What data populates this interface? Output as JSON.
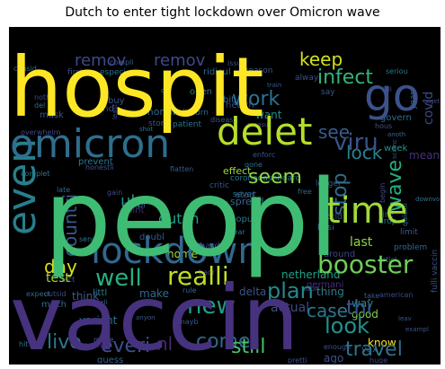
{
  "chart_data": {
    "type": "wordcloud",
    "title": "Dutch to enter tight lockdown over Omicron wave",
    "background": "#000000",
    "colormap": "viridis",
    "words": [
      {
        "text": "peopl",
        "weight": 1.0,
        "color": "#3fbc73"
      },
      {
        "text": "vaccin",
        "weight": 0.92,
        "color": "#46327e"
      },
      {
        "text": "hospit",
        "weight": 0.88,
        "color": "#fde725"
      },
      {
        "text": "lockdown",
        "weight": 0.62,
        "color": "#31688e"
      },
      {
        "text": "omicron",
        "weight": 0.6,
        "color": "#2e6e8e"
      },
      {
        "text": "delet",
        "weight": 0.58,
        "color": "#b5de2b"
      },
      {
        "text": "time",
        "weight": 0.55,
        "color": "#a0da39"
      },
      {
        "text": "go",
        "weight": 0.55,
        "color": "#3b528b"
      },
      {
        "text": "even",
        "weight": 0.5,
        "color": "#277f8e"
      },
      {
        "text": "realli",
        "weight": 0.42,
        "color": "#bddf26"
      },
      {
        "text": "booster",
        "weight": 0.4,
        "color": "#6ece58"
      },
      {
        "text": "look",
        "weight": 0.4,
        "color": "#21918c"
      },
      {
        "text": "new",
        "weight": 0.38,
        "color": "#1f9e89"
      },
      {
        "text": "plan",
        "weight": 0.38,
        "color": "#23898e"
      },
      {
        "text": "viru",
        "weight": 0.36,
        "color": "#3b528b"
      },
      {
        "text": "work",
        "weight": 0.34,
        "color": "#2c738e"
      },
      {
        "text": "infect",
        "weight": 0.34,
        "color": "#31b57b"
      },
      {
        "text": "well",
        "weight": 0.34,
        "color": "#28ae80"
      },
      {
        "text": "day",
        "weight": 0.32,
        "color": "#d8e219"
      },
      {
        "text": "live",
        "weight": 0.32,
        "color": "#2a788e"
      },
      {
        "text": "still",
        "weight": 0.32,
        "color": "#4ac16d"
      },
      {
        "text": "travel",
        "weight": 0.32,
        "color": "#2c728e"
      },
      {
        "text": "remov",
        "weight": 0.3,
        "color": "#3e4989"
      },
      {
        "text": "remov",
        "weight": 0.3,
        "color": "#3e4989"
      },
      {
        "text": "see",
        "weight": 0.3,
        "color": "#365d8d"
      },
      {
        "text": "keep",
        "weight": 0.28,
        "color": "#d2e21b"
      },
      {
        "text": "seem",
        "weight": 0.28,
        "color": "#90d743"
      },
      {
        "text": "wave",
        "weight": 0.28,
        "color": "#26ad81"
      },
      {
        "text": "stop",
        "weight": 0.27,
        "color": "#2f6c8e"
      },
      {
        "text": "lock",
        "weight": 0.26,
        "color": "#26828e"
      },
      {
        "text": "countri",
        "weight": 0.26,
        "color": "#39568c"
      },
      {
        "text": "come",
        "weight": 0.26,
        "color": "#31688e"
      },
      {
        "text": "case",
        "weight": 0.26,
        "color": "#2a788e"
      },
      {
        "text": "thi",
        "weight": 0.26,
        "color": "#38588c"
      },
      {
        "text": "everi",
        "weight": 0.26,
        "color": "#3b528b"
      },
      {
        "text": "dutch",
        "weight": 0.22,
        "color": "#1fa088"
      },
      {
        "text": "uk",
        "weight": 0.22,
        "color": "#21918c"
      },
      {
        "text": "covid",
        "weight": 0.22,
        "color": "#3e4989"
      },
      {
        "text": "test",
        "weight": 0.2,
        "color": "#a0da39"
      },
      {
        "text": "nl",
        "weight": 0.2,
        "color": "#482677"
      },
      {
        "text": "home",
        "weight": 0.16,
        "color": "#a5db36"
      },
      {
        "text": "last",
        "weight": 0.16,
        "color": "#8bd646"
      },
      {
        "text": "thing",
        "weight": 0.15,
        "color": "#287c8e"
      },
      {
        "text": "netherland",
        "weight": 0.15,
        "color": "#1fa187"
      },
      {
        "text": "actual",
        "weight": 0.15,
        "color": "#3d4d8a"
      },
      {
        "text": "delta",
        "weight": 0.15,
        "color": "#3b528b"
      },
      {
        "text": "make",
        "weight": 0.14,
        "color": "#31688e"
      },
      {
        "text": "think",
        "weight": 0.14,
        "color": "#38598c"
      },
      {
        "text": "variant",
        "weight": 0.14,
        "color": "#2c728e"
      },
      {
        "text": "know",
        "weight": 0.14,
        "color": "#fde725"
      },
      {
        "text": "way",
        "weight": 0.14,
        "color": "#24878e"
      },
      {
        "text": "good",
        "weight": 0.14,
        "color": "#7ad151"
      },
      {
        "text": "need",
        "weight": 0.14,
        "color": "#482878"
      },
      {
        "text": "ago",
        "weight": 0.14,
        "color": "#3b528b"
      },
      {
        "text": "want",
        "weight": 0.14,
        "color": "#228d8d"
      },
      {
        "text": "mean",
        "weight": 0.12,
        "color": "#46327e"
      },
      {
        "text": "much",
        "weight": 0.12,
        "color": "#2f6c8e"
      },
      {
        "text": "guess",
        "weight": 0.12,
        "color": "#35608d"
      },
      {
        "text": "month",
        "weight": 0.12,
        "color": "#31688e"
      },
      {
        "text": "effect",
        "weight": 0.12,
        "color": "#9bd93c"
      },
      {
        "text": "spread",
        "weight": 0.12,
        "color": "#31688e"
      },
      {
        "text": "point",
        "weight": 0.12,
        "color": "#472c7a"
      },
      {
        "text": "popul",
        "weight": 0.12,
        "color": "#2a788e"
      },
      {
        "text": "hard",
        "weight": 0.12,
        "color": "#3f4889"
      },
      {
        "text": "start",
        "weight": 0.11,
        "color": "#39558c"
      },
      {
        "text": "germani",
        "weight": 0.11,
        "color": "#472f7d"
      },
      {
        "text": "around",
        "weight": 0.11,
        "color": "#3f4788"
      },
      {
        "text": "govern",
        "weight": 0.11,
        "color": "#2f6c8e"
      },
      {
        "text": "week",
        "weight": 0.11,
        "color": "#21918c"
      },
      {
        "text": "coronadashboard",
        "weight": 0.09,
        "color": "#2a788e"
      },
      {
        "text": "doubl",
        "weight": 0.1,
        "color": "#38588c"
      },
      {
        "text": "fulli vaccin",
        "weight": 0.09,
        "color": "#3b528b"
      },
      {
        "text": "open",
        "weight": 0.09,
        "color": "#2a788e"
      },
      {
        "text": "health",
        "weight": 0.09,
        "color": "#3e4989"
      },
      {
        "text": "bit",
        "weight": 0.09,
        "color": "#31688e"
      },
      {
        "text": "buy",
        "weight": 0.09,
        "color": "#3b528b"
      },
      {
        "text": "find",
        "weight": 0.09,
        "color": "#3e4989"
      },
      {
        "text": "mask",
        "weight": 0.09,
        "color": "#3b528b"
      },
      {
        "text": "first",
        "weight": 0.09,
        "color": "#3e4989"
      },
      {
        "text": "prevent",
        "weight": 0.09,
        "color": "#2a788e"
      },
      {
        "text": "coupl",
        "weight": 0.09,
        "color": "#38588c"
      },
      {
        "text": "ridicul",
        "weight": 0.09,
        "color": "#31688e"
      },
      {
        "text": "especi",
        "weight": 0.08,
        "color": "#2c728e"
      },
      {
        "text": "reason",
        "weight": 0.08,
        "color": "#38598c"
      },
      {
        "text": "year",
        "weight": 0.08,
        "color": "#2c728e"
      },
      {
        "text": "alway",
        "weight": 0.08,
        "color": "#3b528b"
      },
      {
        "text": "say",
        "weight": 0.08,
        "color": "#38588c"
      },
      {
        "text": "patient",
        "weight": 0.08,
        "color": "#2a788e"
      },
      {
        "text": "tire",
        "weight": 0.08,
        "color": "#3b528b"
      },
      {
        "text": "longer",
        "weight": 0.08,
        "color": "#38598c"
      },
      {
        "text": "busi",
        "weight": 0.08,
        "color": "#31688e"
      },
      {
        "text": "world",
        "weight": 0.08,
        "color": "#3e4989"
      },
      {
        "text": "drop",
        "weight": 0.08,
        "color": "#2c728e"
      },
      {
        "text": "limit",
        "weight": 0.08,
        "color": "#38598c"
      },
      {
        "text": "problem",
        "weight": 0.08,
        "color": "#31688e"
      },
      {
        "text": "american",
        "weight": 0.07,
        "color": "#3e4989"
      },
      {
        "text": "littl",
        "weight": 0.08,
        "color": "#2a788e"
      },
      {
        "text": "rule",
        "weight": 0.07,
        "color": "#31688e"
      },
      {
        "text": "pretti",
        "weight": 0.07,
        "color": "#3b528b"
      },
      {
        "text": "happen",
        "weight": 0.07,
        "color": "#3e4989"
      },
      {
        "text": "made",
        "weight": 0.07,
        "color": "#38588c"
      },
      {
        "text": "hit",
        "weight": 0.07,
        "color": "#2c728e"
      },
      {
        "text": "basic",
        "weight": 0.07,
        "color": "#3e4989"
      },
      {
        "text": "life",
        "weight": 0.07,
        "color": "#31688e"
      },
      {
        "text": "enough",
        "weight": 0.07,
        "color": "#3b528b"
      },
      {
        "text": "attempt",
        "weight": 0.06,
        "color": "#2a788e"
      },
      {
        "text": "huge",
        "weight": 0.06,
        "color": "#3e4989"
      },
      {
        "text": "vax",
        "weight": 0.07,
        "color": "#31688e"
      },
      {
        "text": "right",
        "weight": 0.07,
        "color": "#3b528b"
      },
      {
        "text": "america",
        "weight": 0.06,
        "color": "#3e4989"
      },
      {
        "text": "sever",
        "weight": 0.07,
        "color": "#2a788e"
      },
      {
        "text": "critic",
        "weight": 0.07,
        "color": "#38588c"
      },
      {
        "text": "melbourn",
        "weight": 0.07,
        "color": "#31688e"
      },
      {
        "text": "stori",
        "weight": 0.07,
        "color": "#3b528b"
      },
      {
        "text": "fact",
        "weight": 0.07,
        "color": "#38598c"
      },
      {
        "text": "outsid",
        "weight": 0.07,
        "color": "#3e4989"
      },
      {
        "text": "expect",
        "weight": 0.07,
        "color": "#31688e"
      },
      {
        "text": "honestli",
        "weight": 0.07,
        "color": "#3b528b"
      },
      {
        "text": "complet",
        "weight": 0.07,
        "color": "#2a788e"
      },
      {
        "text": "overwhelm",
        "weight": 0.07,
        "color": "#3e4989"
      },
      {
        "text": "caus",
        "weight": 0.07,
        "color": "#31688e"
      },
      {
        "text": "flatten",
        "weight": 0.07,
        "color": "#38588c"
      },
      {
        "text": "enforc",
        "weight": 0.07,
        "color": "#3b528b"
      },
      {
        "text": "quickli",
        "weight": 0.07,
        "color": "#2c728e"
      },
      {
        "text": "thought",
        "weight": 0.07,
        "color": "#3e4989"
      },
      {
        "text": "articl",
        "weight": 0.06,
        "color": "#31688e"
      },
      {
        "text": "soon",
        "weight": 0.06,
        "color": "#3b528b"
      },
      {
        "text": "take",
        "weight": 0.06,
        "color": "#38598c"
      },
      {
        "text": "wear",
        "weight": 0.06,
        "color": "#2a788e"
      },
      {
        "text": "gain",
        "weight": 0.06,
        "color": "#3e4989"
      },
      {
        "text": "late",
        "weight": 0.06,
        "color": "#31688e"
      },
      {
        "text": "anyon",
        "weight": 0.06,
        "color": "#38588c"
      },
      {
        "text": "scienc",
        "weight": 0.06,
        "color": "#3b528b"
      },
      {
        "text": "shot",
        "weight": 0.06,
        "color": "#2c728e"
      },
      {
        "text": "least",
        "weight": 0.06,
        "color": "#3e4989"
      },
      {
        "text": "consid",
        "weight": 0.06,
        "color": "#31688e"
      },
      {
        "text": "compli",
        "weight": 0.06,
        "color": "#38598c"
      },
      {
        "text": "issu",
        "weight": 0.06,
        "color": "#3b528b"
      },
      {
        "text": "seriou",
        "weight": 0.06,
        "color": "#2a788e"
      },
      {
        "text": "noth",
        "weight": 0.06,
        "color": "#3e4989"
      },
      {
        "text": "del",
        "weight": 0.06,
        "color": "#31688e"
      },
      {
        "text": "diseas",
        "weight": 0.06,
        "color": "#38588c"
      },
      {
        "text": "hous",
        "weight": 0.06,
        "color": "#3b528b"
      },
      {
        "text": "gone",
        "weight": 0.06,
        "color": "#2c728e"
      },
      {
        "text": "begin",
        "weight": 0.06,
        "color": "#3e4989"
      },
      {
        "text": "free",
        "weight": 0.06,
        "color": "#31688e"
      },
      {
        "text": "mayb",
        "weight": 0.06,
        "color": "#38598c"
      },
      {
        "text": "possibl",
        "weight": 0.06,
        "color": "#3b528b"
      },
      {
        "text": "send",
        "weight": 0.06,
        "color": "#2a788e"
      },
      {
        "text": "badr",
        "weight": 0.06,
        "color": "#3e4989"
      },
      {
        "text": "earli",
        "weight": 0.06,
        "color": "#31688e"
      },
      {
        "text": "leav",
        "weight": 0.06,
        "color": "#38588c"
      },
      {
        "text": "exampl",
        "weight": 0.06,
        "color": "#3b528b"
      },
      {
        "text": "downvot",
        "weight": 0.05,
        "color": "#2c728e"
      },
      {
        "text": "togeth",
        "weight": 0.05,
        "color": "#3e4989"
      },
      {
        "text": "anoth",
        "weight": 0.05,
        "color": "#31688e"
      },
      {
        "text": "train",
        "weight": 0.05,
        "color": "#38598c"
      },
      {
        "text": "full",
        "weight": 0.05,
        "color": "#3b528b"
      },
      {
        "text": "citi",
        "weight": 0.05,
        "color": "#2a788e"
      },
      {
        "text": "measur",
        "weight": 0.05,
        "color": "#3e4989"
      }
    ]
  }
}
